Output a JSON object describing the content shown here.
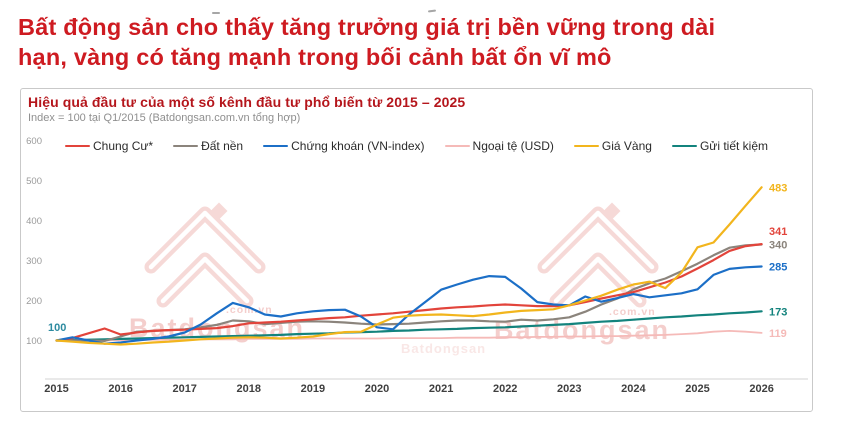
{
  "page": {
    "title_line1": "Bất động sản cho thấy tăng trưởng giá trị bền vững trong dài",
    "title_line2": "hạn, vàng có tăng mạnh trong bối cảnh bất ổn vĩ mô",
    "title_color": "#ce1b21"
  },
  "card": {
    "title": "Hiệu quả đầu tư của một số kênh đầu tư phổ biến từ 2015 – 2025",
    "title_color": "#b5161c",
    "subtitle": "Index = 100 tại Q1/2015 (Batdongsan.com.vn tổng hợp)",
    "watermark_text": "Batdongsan",
    "watermark_suffix": ".com.vn",
    "watermark_color": "#f5d2d0"
  },
  "chart_data": {
    "type": "line",
    "title": "Hiệu quả đầu tư của một số kênh đầu tư phổ biến từ 2015 – 2025",
    "subtitle": "Index = 100 tại Q1/2015 (Batdongsan.com.vn tổng hợp)",
    "grid": false,
    "legend_position": "top",
    "ylim": [
      0,
      615
    ],
    "y_ticks": [
      "100",
      "200",
      "300",
      "400",
      "500",
      "600"
    ],
    "x_ticks": [
      "2015",
      "2016",
      "2017",
      "2018",
      "2019",
      "2020",
      "2021",
      "2022",
      "2023",
      "2024",
      "2025",
      "2026"
    ],
    "start_annotation": {
      "text": "100",
      "color": "#2d8ba0"
    },
    "z_order": [
      3,
      5,
      1,
      0,
      2,
      4
    ],
    "x": [
      2015,
      2015.25,
      2015.5,
      2015.75,
      2016,
      2016.25,
      2016.5,
      2016.75,
      2017,
      2017.25,
      2017.5,
      2017.75,
      2018,
      2018.25,
      2018.5,
      2018.75,
      2019,
      2019.25,
      2019.5,
      2019.75,
      2020,
      2020.25,
      2020.5,
      2020.75,
      2021,
      2021.25,
      2021.5,
      2021.75,
      2022,
      2022.25,
      2022.5,
      2022.75,
      2023,
      2023.25,
      2023.5,
      2023.75,
      2024,
      2024.25,
      2024.5,
      2024.75,
      2025,
      2025.25,
      2025.5,
      2025.75,
      2026
    ],
    "series": [
      {
        "name": "Chung Cư*",
        "color": "#e2443b",
        "end_label": "341",
        "end_label_dy": -13,
        "values": [
          100,
          106,
          118,
          130,
          115,
          120,
          124,
          126,
          127,
          129,
          131,
          136,
          143,
          145,
          147,
          150,
          153,
          156,
          158,
          162,
          165,
          168,
          172,
          176,
          180,
          183,
          185,
          188,
          190,
          188,
          186,
          186,
          188,
          196,
          205,
          213,
          221,
          233,
          245,
          260,
          280,
          301,
          324,
          336,
          341
        ]
      },
      {
        "name": "Đất nền",
        "color": "#8b847c",
        "end_label": "340",
        "end_label_dy": 0,
        "values": [
          100,
          100,
          100,
          99,
          110,
          122,
          124,
          126,
          128,
          133,
          139,
          150,
          148,
          141,
          144,
          147,
          148,
          147,
          145,
          142,
          140,
          141,
          142,
          145,
          148,
          150,
          150,
          148,
          147,
          152,
          150,
          153,
          158,
          172,
          190,
          205,
          228,
          243,
          255,
          273,
          292,
          313,
          332,
          338,
          340
        ]
      },
      {
        "name": "Chứng khoán (VN-index)",
        "color": "#1c6fc7",
        "end_label": "285",
        "end_label_dy": 0,
        "values": [
          100,
          108,
          100,
          92,
          95,
          100,
          104,
          110,
          120,
          140,
          168,
          194,
          183,
          165,
          160,
          168,
          173,
          176,
          177,
          160,
          133,
          128,
          165,
          196,
          227,
          240,
          252,
          261,
          259,
          230,
          196,
          190,
          188,
          210,
          197,
          206,
          216,
          208,
          213,
          218,
          228,
          264,
          279,
          283,
          285
        ]
      },
      {
        "name": "Ngoại tệ (USD)",
        "color": "#f5bab8",
        "end_label": "119",
        "end_label_dy": 0,
        "values": [
          100,
          100,
          100,
          100,
          101,
          101,
          102,
          102,
          102,
          103,
          103,
          103,
          104,
          104,
          104,
          104,
          105,
          105,
          105,
          105,
          105,
          106,
          106,
          106,
          106,
          107,
          107,
          107,
          108,
          108,
          109,
          109,
          110,
          110,
          111,
          111,
          112,
          113,
          114,
          116,
          118,
          122,
          124,
          122,
          119
        ]
      },
      {
        "name": "Giá Vàng",
        "color": "#f2b51d",
        "end_label": "483",
        "end_label_dy": 0,
        "values": [
          100,
          97,
          94,
          92,
          90,
          92,
          95,
          97,
          100,
          103,
          105,
          107,
          108,
          107,
          105,
          107,
          110,
          116,
          121,
          122,
          140,
          157,
          162,
          164,
          165,
          163,
          161,
          165,
          170,
          174,
          176,
          178,
          188,
          200,
          212,
          227,
          240,
          247,
          231,
          270,
          333,
          345,
          390,
          437,
          483
        ]
      },
      {
        "name": "Gửi tiết kiệm",
        "color": "#13837d",
        "end_label": "173",
        "end_label_dy": 0,
        "values": [
          100,
          101,
          102,
          103,
          104,
          105,
          106,
          107,
          108,
          109,
          110,
          111,
          112,
          113,
          114,
          116,
          117,
          118,
          120,
          121,
          122,
          124,
          125,
          127,
          128,
          129,
          131,
          132,
          133,
          135,
          137,
          139,
          141,
          144,
          147,
          149,
          152,
          155,
          158,
          160,
          163,
          165,
          168,
          170,
          173
        ]
      }
    ]
  }
}
